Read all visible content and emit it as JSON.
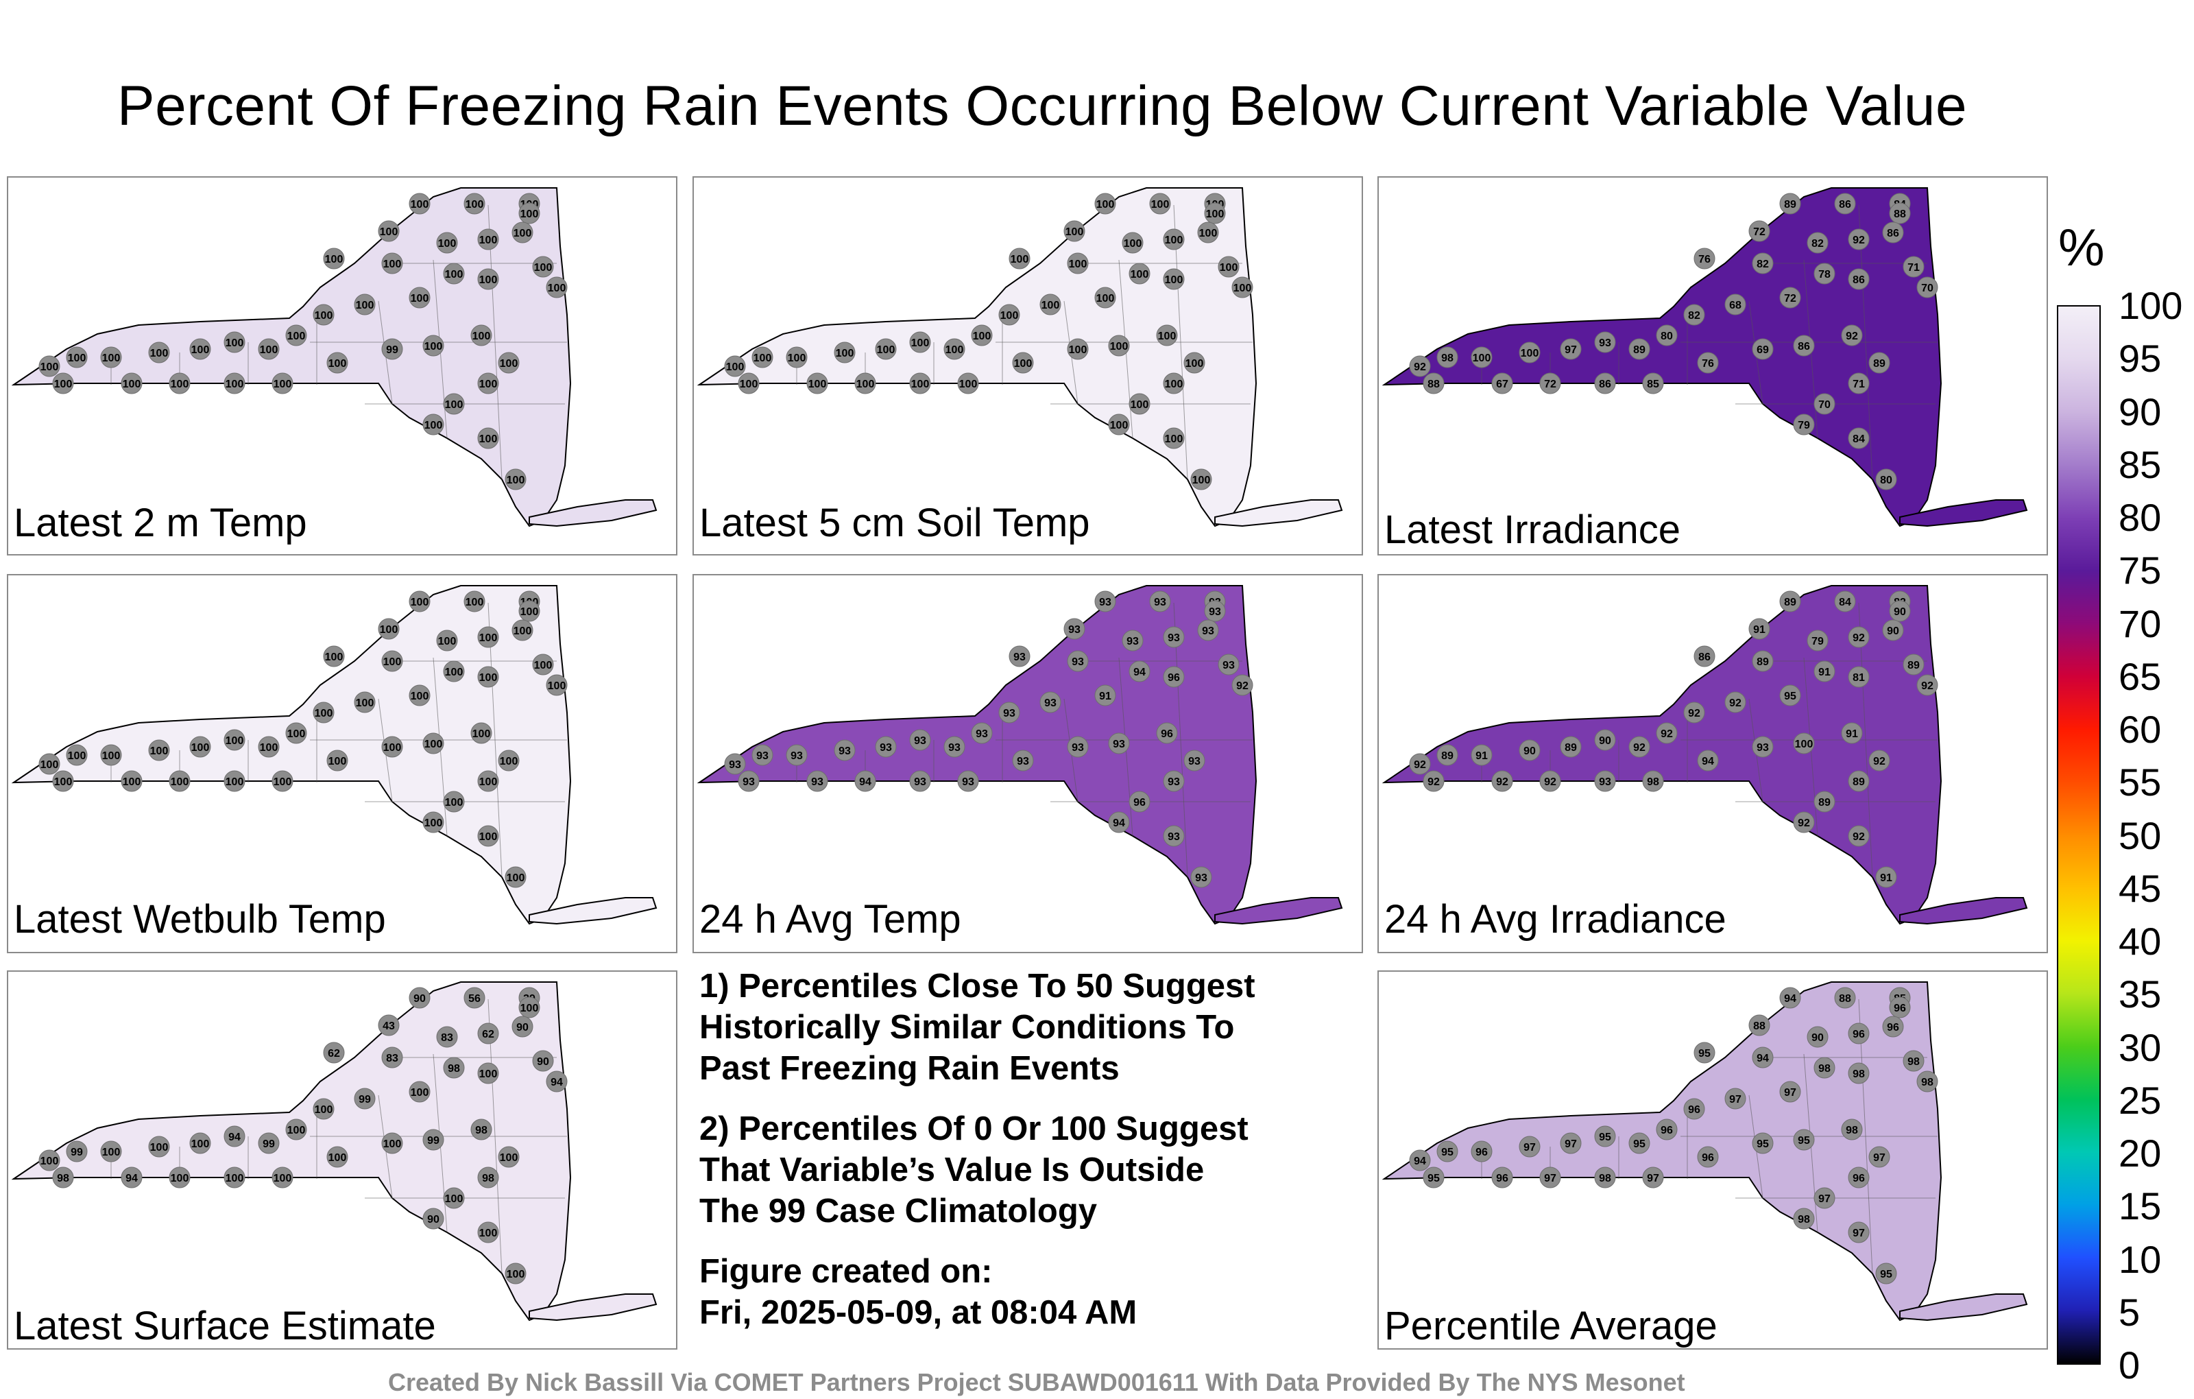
{
  "title": "Percent Of Freezing Rain Events Occurring Below Current Variable Value",
  "panels": [
    {
      "label": "Latest 2 m Temp",
      "fill": "#e7def0",
      "stations": [
        "100",
        "100",
        "100",
        "100",
        "100",
        "100",
        "100",
        "100",
        "100",
        "100",
        "100",
        "100",
        "100",
        "100",
        "100",
        "100",
        "100",
        "100",
        "100",
        "100",
        "100",
        "100",
        "100",
        "100",
        "100",
        "100",
        "100",
        "100",
        "100",
        "100",
        "100",
        "99",
        "100",
        "100",
        "100",
        "100",
        "100",
        "100",
        "100",
        "100"
      ]
    },
    {
      "label": "Latest 5 cm Soil Temp",
      "fill": "#f3eff7",
      "stations": [
        "100",
        "100",
        "100",
        "100",
        "100",
        "100",
        "100",
        "100",
        "100",
        "100",
        "100",
        "100",
        "100",
        "100",
        "100",
        "100",
        "100",
        "100",
        "100",
        "100",
        "100",
        "100",
        "100",
        "100",
        "100",
        "100",
        "100",
        "100",
        "100",
        "100",
        "100",
        "100",
        "100",
        "100",
        "100",
        "100",
        "100",
        "100",
        "100",
        "100"
      ]
    },
    {
      "label": "Latest Irradiance",
      "fill": "#5a1a9a",
      "stations": [
        "89",
        "86",
        "84",
        "88",
        "72",
        "82",
        "92",
        "86",
        "76",
        "82",
        "78",
        "86",
        "71",
        "70",
        "72",
        "68",
        "82",
        "80",
        "89",
        "93",
        "97",
        "100",
        "100",
        "98",
        "92",
        "88",
        "67",
        "72",
        "86",
        "85",
        "76",
        "69",
        "86",
        "92",
        "89",
        "71",
        "70",
        "79",
        "84",
        "80"
      ]
    },
    {
      "label": "Latest Wetbulb Temp",
      "fill": "#f3eff7",
      "stations": [
        "100",
        "100",
        "100",
        "100",
        "100",
        "100",
        "100",
        "100",
        "100",
        "100",
        "100",
        "100",
        "100",
        "100",
        "100",
        "100",
        "100",
        "100",
        "100",
        "100",
        "100",
        "100",
        "100",
        "100",
        "100",
        "100",
        "100",
        "100",
        "100",
        "100",
        "100",
        "100",
        "100",
        "100",
        "100",
        "100",
        "100",
        "100",
        "100",
        "100"
      ]
    },
    {
      "label": "24 h Avg Temp",
      "fill": "#8a4bb6",
      "stations": [
        "93",
        "93",
        "93",
        "93",
        "93",
        "93",
        "93",
        "93",
        "93",
        "93",
        "94",
        "96",
        "93",
        "92",
        "91",
        "93",
        "93",
        "93",
        "93",
        "93",
        "93",
        "93",
        "93",
        "93",
        "93",
        "93",
        "93",
        "94",
        "93",
        "93",
        "93",
        "93",
        "93",
        "96",
        "93",
        "93",
        "96",
        "94",
        "93",
        "93"
      ]
    },
    {
      "label": "24 h Avg Irradiance",
      "fill": "#7a3aad",
      "stations": [
        "89",
        "84",
        "82",
        "90",
        "91",
        "79",
        "92",
        "90",
        "86",
        "89",
        "91",
        "81",
        "89",
        "92",
        "95",
        "92",
        "92",
        "92",
        "92",
        "90",
        "89",
        "90",
        "91",
        "89",
        "92",
        "92",
        "92",
        "92",
        "93",
        "98",
        "94",
        "93",
        "100",
        "91",
        "92",
        "89",
        "89",
        "92",
        "92",
        "91"
      ]
    },
    {
      "label": "Latest Surface Estimate",
      "fill": "#eee6f3",
      "stations": [
        "90",
        "56",
        "39",
        "100",
        "43",
        "83",
        "62",
        "90",
        "62",
        "83",
        "98",
        "100",
        "90",
        "94",
        "100",
        "99",
        "100",
        "100",
        "99",
        "94",
        "100",
        "100",
        "100",
        "99",
        "100",
        "98",
        "94",
        "100",
        "100",
        "100",
        "100",
        "100",
        "99",
        "98",
        "100",
        "98",
        "100",
        "90",
        "100",
        "100"
      ]
    },
    {
      "label": "Percentile Average",
      "fill": "#c9b3dd",
      "stations": [
        "94",
        "88",
        "85",
        "96",
        "88",
        "90",
        "96",
        "96",
        "95",
        "94",
        "98",
        "98",
        "98",
        "98",
        "97",
        "97",
        "96",
        "96",
        "95",
        "95",
        "97",
        "97",
        "96",
        "95",
        "94",
        "95",
        "96",
        "97",
        "98",
        "97",
        "96",
        "95",
        "95",
        "98",
        "97",
        "96",
        "97",
        "98",
        "97",
        "95"
      ]
    }
  ],
  "notes": [
    "1) Percentiles Close To 50 Suggest\nHistorically Similar Conditions To\nPast Freezing Rain Events",
    "2) Percentiles Of 0 Or 100 Suggest\nThat Variable’s Value Is Outside\nThe 99 Case Climatology"
  ],
  "created": "Figure created on:\nFri, 2025-05-09, at 08:04 AM",
  "footer": "Created By Nick Bassill Via COMET Partners Project SUBAWD001611 With Data Provided By The NYS Mesonet",
  "colorbar": {
    "unit": "%",
    "ticks": [
      "100",
      "95",
      "90",
      "85",
      "80",
      "75",
      "70",
      "65",
      "60",
      "55",
      "50",
      "45",
      "40",
      "35",
      "30",
      "25",
      "20",
      "15",
      "10",
      "5",
      "0"
    ],
    "colors": [
      "#f3eff7",
      "#e4d8ee",
      "#cbb3df",
      "#a37ccb",
      "#7d3fb5",
      "#5a1a9a",
      "#8e0a78",
      "#d00038",
      "#ff1a00",
      "#ff4d00",
      "#ff8c00",
      "#ffc000",
      "#f2f200",
      "#b6e61a",
      "#4ccd1a",
      "#00c25a",
      "#00c8b4",
      "#00a0e6",
      "#2050ff",
      "#2020b4",
      "#000000"
    ]
  }
}
